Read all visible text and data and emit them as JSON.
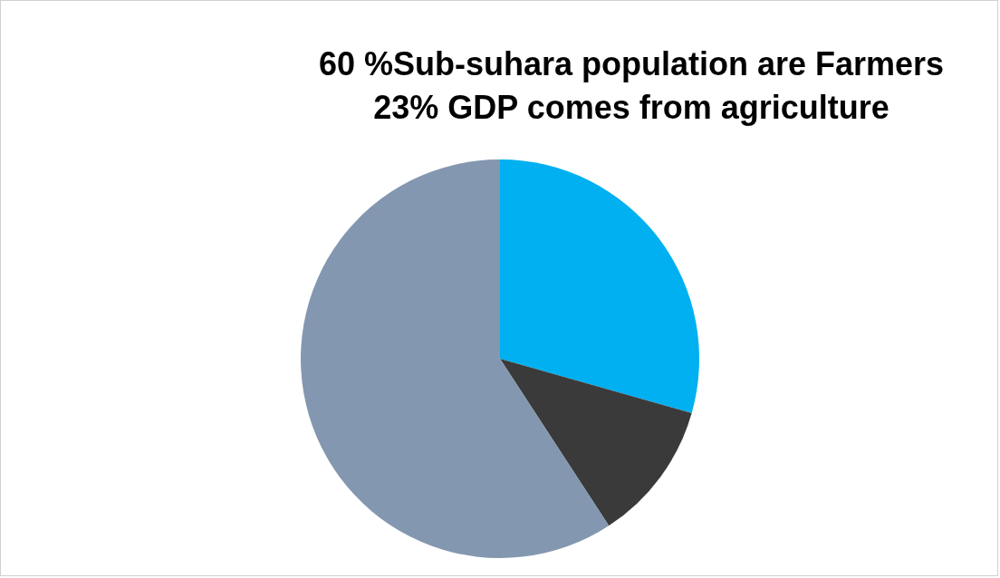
{
  "chart_data": {
    "type": "pie",
    "title": "60 %Sub-suhara population are Farmers\n23% GDP comes from agriculture",
    "categories": [
      null,
      null,
      null
    ],
    "values": [
      29.4,
      11.4,
      59.2
    ],
    "colors": [
      "#00b0f0",
      "#3a3a3a",
      "#8497b0"
    ]
  }
}
